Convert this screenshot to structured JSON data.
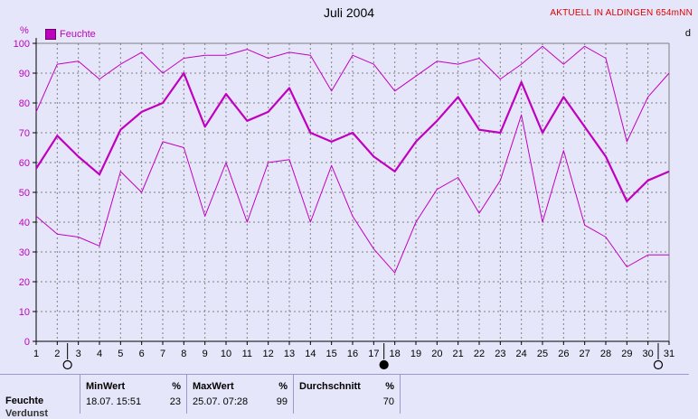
{
  "header": {
    "title": "Juli 2004",
    "status": "AKTUELL IN ALDINGEN 654mNN",
    "y_unit": "%",
    "right_edge_label": "d"
  },
  "chart_data": {
    "type": "line",
    "title": "Juli 2004",
    "ylabel": "%",
    "ylim": [
      0,
      100
    ],
    "yticks": [
      0,
      10,
      20,
      30,
      40,
      50,
      60,
      70,
      80,
      90,
      100
    ],
    "x": [
      1,
      2,
      3,
      4,
      5,
      6,
      7,
      8,
      9,
      10,
      11,
      12,
      13,
      14,
      15,
      16,
      17,
      18,
      19,
      20,
      21,
      22,
      23,
      24,
      25,
      26,
      27,
      28,
      29,
      30,
      31
    ],
    "legend": "top-left",
    "grid": true,
    "colors": {
      "line": "#C000C0",
      "grid": "#808080",
      "axis": "#000000"
    },
    "series": [
      {
        "name": "Feuchte",
        "role": "average",
        "values": [
          58,
          69,
          62,
          56,
          71,
          77,
          80,
          90,
          72,
          83,
          74,
          77,
          85,
          70,
          67,
          70,
          62,
          57,
          67,
          74,
          82,
          71,
          70,
          87,
          70,
          82,
          72,
          62,
          47,
          54,
          57
        ]
      },
      {
        "role": "max",
        "values": [
          77,
          93,
          94,
          88,
          93,
          97,
          90,
          95,
          96,
          96,
          98,
          95,
          97,
          96,
          84,
          96,
          93,
          84,
          89,
          94,
          93,
          95,
          88,
          93,
          99,
          93,
          99,
          95,
          67,
          82,
          90
        ]
      },
      {
        "role": "min",
        "values": [
          42,
          36,
          35,
          32,
          57,
          50,
          67,
          65,
          42,
          60,
          40,
          60,
          61,
          40,
          59,
          42,
          31,
          23,
          40,
          51,
          55,
          43,
          54,
          76,
          40,
          64,
          39,
          35,
          25,
          29,
          29
        ]
      }
    ],
    "moon_phases": [
      {
        "day": 3,
        "icon": "open-circle-icon"
      },
      {
        "day": 18,
        "icon": "filled-circle-icon"
      },
      {
        "day": 31,
        "icon": "open-circle-icon"
      }
    ]
  },
  "stats": {
    "row_label": "Feuchte",
    "row_label_2": "Verdunst",
    "min": {
      "header": "MinWert",
      "unit": "%",
      "datetime": "18.07.  15:51",
      "value": "23"
    },
    "max": {
      "header": "MaxWert",
      "unit": "%",
      "datetime": "25.07.  07:28",
      "value": "99"
    },
    "avg": {
      "header": "Durchschnitt",
      "unit": "%",
      "value": "70"
    }
  }
}
